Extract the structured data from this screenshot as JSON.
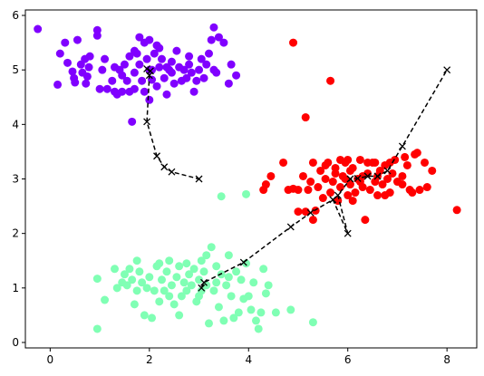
{
  "chart_data": {
    "type": "scatter",
    "title": "",
    "xlabel": "",
    "ylabel": "",
    "xlim": [
      -0.5,
      8.6
    ],
    "ylim": [
      -0.1,
      6.1
    ],
    "x_ticks": [
      "0",
      "2",
      "4",
      "6",
      "8"
    ],
    "x_tick_values": [
      0,
      2,
      4,
      6,
      8
    ],
    "y_ticks": [
      "0",
      "1",
      "2",
      "3",
      "4",
      "5",
      "6"
    ],
    "y_tick_values": [
      0,
      1,
      2,
      3,
      4,
      5,
      6
    ],
    "grid": false,
    "series": [
      {
        "color": "#8000ff",
        "marker": "circle",
        "points": [
          [
            -0.25,
            5.75
          ],
          [
            0.15,
            4.73
          ],
          [
            0.2,
            5.3
          ],
          [
            0.3,
            5.5
          ],
          [
            0.35,
            5.13
          ],
          [
            0.45,
            4.97
          ],
          [
            0.48,
            4.85
          ],
          [
            0.5,
            4.77
          ],
          [
            0.55,
            5.55
          ],
          [
            0.62,
            5.1
          ],
          [
            0.65,
            4.95
          ],
          [
            0.7,
            5.2
          ],
          [
            0.72,
            4.75
          ],
          [
            0.75,
            4.88
          ],
          [
            0.78,
            5.05
          ],
          [
            0.8,
            5.25
          ],
          [
            0.95,
            5.63
          ],
          [
            0.95,
            5.73
          ],
          [
            1.0,
            4.65
          ],
          [
            1.05,
            5.0
          ],
          [
            1.1,
            5.2
          ],
          [
            1.15,
            4.65
          ],
          [
            1.25,
            4.8
          ],
          [
            1.3,
            5.05
          ],
          [
            1.3,
            4.6
          ],
          [
            1.35,
            4.55
          ],
          [
            1.4,
            5.0
          ],
          [
            1.45,
            4.9
          ],
          [
            1.5,
            5.1
          ],
          [
            1.55,
            4.8
          ],
          [
            1.6,
            5.25
          ],
          [
            1.6,
            4.6
          ],
          [
            1.7,
            4.95
          ],
          [
            1.7,
            4.65
          ],
          [
            1.75,
            5.3
          ],
          [
            1.8,
            5.1
          ],
          [
            1.85,
            4.8
          ],
          [
            1.9,
            5.5
          ],
          [
            1.9,
            4.6
          ],
          [
            1.95,
            5.2
          ],
          [
            2.0,
            4.45
          ],
          [
            2.0,
            5.0
          ],
          [
            2.05,
            5.0
          ],
          [
            2.1,
            5.3
          ],
          [
            2.15,
            5.45
          ],
          [
            2.2,
            5.05
          ],
          [
            2.25,
            5.2
          ],
          [
            2.3,
            4.85
          ],
          [
            2.35,
            4.55
          ],
          [
            2.4,
            5.0
          ],
          [
            2.45,
            5.15
          ],
          [
            2.5,
            4.75
          ],
          [
            2.55,
            5.35
          ],
          [
            2.6,
            5.05
          ],
          [
            2.65,
            4.8
          ],
          [
            2.7,
            5.0
          ],
          [
            2.75,
            4.85
          ],
          [
            2.8,
            5.25
          ],
          [
            2.85,
            4.95
          ],
          [
            2.9,
            4.6
          ],
          [
            2.95,
            4.8
          ],
          [
            3.0,
            5.0
          ],
          [
            3.05,
            5.2
          ],
          [
            3.1,
            4.85
          ],
          [
            3.15,
            5.1
          ],
          [
            3.2,
            5.3
          ],
          [
            3.25,
            5.55
          ],
          [
            3.3,
            5.0
          ],
          [
            3.35,
            4.95
          ],
          [
            3.4,
            5.6
          ],
          [
            3.5,
            5.5
          ],
          [
            3.6,
            4.75
          ],
          [
            3.65,
            5.1
          ],
          [
            3.75,
            4.9
          ],
          [
            1.7,
            5.35
          ],
          [
            2.0,
            5.55
          ],
          [
            2.2,
            5.4
          ],
          [
            1.45,
            4.6
          ],
          [
            1.8,
            5.6
          ],
          [
            1.65,
            4.05
          ],
          [
            2.05,
            4.82
          ],
          [
            2.35,
            5.05
          ],
          [
            2.45,
            4.95
          ],
          [
            2.15,
            4.7
          ],
          [
            2.8,
            5.1
          ],
          [
            3.3,
            5.78
          ]
        ]
      },
      {
        "color": "#ff0000",
        "marker": "circle",
        "points": [
          [
            4.9,
            5.5
          ],
          [
            5.65,
            4.8
          ],
          [
            5.15,
            4.13
          ],
          [
            4.45,
            3.05
          ],
          [
            4.7,
            3.3
          ],
          [
            4.3,
            2.8
          ],
          [
            4.35,
            2.9
          ],
          [
            4.8,
            2.8
          ],
          [
            4.9,
            2.82
          ],
          [
            5.0,
            2.8
          ],
          [
            5.1,
            3.05
          ],
          [
            5.15,
            2.4
          ],
          [
            5.2,
            2.8
          ],
          [
            5.25,
            2.95
          ],
          [
            5.3,
            2.25
          ],
          [
            5.35,
            2.42
          ],
          [
            5.4,
            2.85
          ],
          [
            5.45,
            3.15
          ],
          [
            5.5,
            2.65
          ],
          [
            5.55,
            3.0
          ],
          [
            5.6,
            3.3
          ],
          [
            5.65,
            2.75
          ],
          [
            5.7,
            2.95
          ],
          [
            5.75,
            3.2
          ],
          [
            5.8,
            2.6
          ],
          [
            5.85,
            2.85
          ],
          [
            5.9,
            3.05
          ],
          [
            5.95,
            3.3
          ],
          [
            6.0,
            2.7
          ],
          [
            6.05,
            2.9
          ],
          [
            6.1,
            3.2
          ],
          [
            6.15,
            2.75
          ],
          [
            6.2,
            3.0
          ],
          [
            6.25,
            3.35
          ],
          [
            6.3,
            2.85
          ],
          [
            6.35,
            2.25
          ],
          [
            6.4,
            3.1
          ],
          [
            6.45,
            2.8
          ],
          [
            6.5,
            3.3
          ],
          [
            6.55,
            2.95
          ],
          [
            6.6,
            2.7
          ],
          [
            6.65,
            3.15
          ],
          [
            6.7,
            2.9
          ],
          [
            6.75,
            3.25
          ],
          [
            6.8,
            3.0
          ],
          [
            6.85,
            2.75
          ],
          [
            6.9,
            3.1
          ],
          [
            6.95,
            3.35
          ],
          [
            7.0,
            2.95
          ],
          [
            7.1,
            3.05
          ],
          [
            7.15,
            3.4
          ],
          [
            7.2,
            3.25
          ],
          [
            7.25,
            2.8
          ],
          [
            7.3,
            2.75
          ],
          [
            7.35,
            3.45
          ],
          [
            7.4,
            3.48
          ],
          [
            7.45,
            2.8
          ],
          [
            7.55,
            3.3
          ],
          [
            7.6,
            2.85
          ],
          [
            7.7,
            3.15
          ],
          [
            8.2,
            2.43
          ],
          [
            5.0,
            2.4
          ],
          [
            5.55,
            3.25
          ],
          [
            6.0,
            3.35
          ],
          [
            5.95,
            3.0
          ],
          [
            6.1,
            2.6
          ],
          [
            6.25,
            2.95
          ],
          [
            6.4,
            3.3
          ],
          [
            6.55,
            3.3
          ],
          [
            6.75,
            2.7
          ],
          [
            5.75,
            3.1
          ],
          [
            5.85,
            3.35
          ],
          [
            6.05,
            3.15
          ],
          [
            6.3,
            3.05
          ],
          [
            6.6,
            3.05
          ],
          [
            6.85,
            3.3
          ],
          [
            7.1,
            2.9
          ],
          [
            5.3,
            3.3
          ]
        ]
      },
      {
        "color": "#80ffb4",
        "marker": "circle",
        "points": [
          [
            0.95,
            0.25
          ],
          [
            0.95,
            1.17
          ],
          [
            1.1,
            0.78
          ],
          [
            1.35,
            1.0
          ],
          [
            1.45,
            1.1
          ],
          [
            1.5,
            1.25
          ],
          [
            1.55,
            1.05
          ],
          [
            1.6,
            1.35
          ],
          [
            1.65,
            1.15
          ],
          [
            1.7,
            0.7
          ],
          [
            1.75,
            0.95
          ],
          [
            1.8,
            1.3
          ],
          [
            1.85,
            1.1
          ],
          [
            1.9,
            0.5
          ],
          [
            1.95,
            1.0
          ],
          [
            2.0,
            1.2
          ],
          [
            2.05,
            0.45
          ],
          [
            2.1,
            0.95
          ],
          [
            2.15,
            1.4
          ],
          [
            2.2,
            0.75
          ],
          [
            2.25,
            1.15
          ],
          [
            2.3,
            0.95
          ],
          [
            2.35,
            1.3
          ],
          [
            2.4,
            0.85
          ],
          [
            2.45,
            1.05
          ],
          [
            2.5,
            0.7
          ],
          [
            2.55,
            1.2
          ],
          [
            2.6,
            0.5
          ],
          [
            2.65,
            0.85
          ],
          [
            2.7,
            1.1
          ],
          [
            2.75,
            0.95
          ],
          [
            2.8,
            1.25
          ],
          [
            2.85,
            1.05
          ],
          [
            2.9,
            1.35
          ],
          [
            2.95,
            0.75
          ],
          [
            3.0,
            1.15
          ],
          [
            3.05,
            0.95
          ],
          [
            3.1,
            1.3
          ],
          [
            3.15,
            1.6
          ],
          [
            3.2,
            0.35
          ],
          [
            3.25,
            1.75
          ],
          [
            3.3,
            0.95
          ],
          [
            3.35,
            1.4
          ],
          [
            3.4,
            0.65
          ],
          [
            3.45,
            1.25
          ],
          [
            3.5,
            0.4
          ],
          [
            3.55,
            1.05
          ],
          [
            3.6,
            1.2
          ],
          [
            3.65,
            0.85
          ],
          [
            3.7,
            0.45
          ],
          [
            3.75,
            1.3
          ],
          [
            3.8,
            0.55
          ],
          [
            3.85,
            1.15
          ],
          [
            3.9,
            0.8
          ],
          [
            3.95,
            1.45
          ],
          [
            4.0,
            0.85
          ],
          [
            4.05,
            0.6
          ],
          [
            4.1,
            1.1
          ],
          [
            4.15,
            0.4
          ],
          [
            4.2,
            0.25
          ],
          [
            4.25,
            0.55
          ],
          [
            4.3,
            1.35
          ],
          [
            4.35,
            0.9
          ],
          [
            4.4,
            1.05
          ],
          [
            4.55,
            0.55
          ],
          [
            4.85,
            0.6
          ],
          [
            5.3,
            0.37
          ],
          [
            3.45,
            2.68
          ],
          [
            3.95,
            2.72
          ],
          [
            2.4,
            1.5
          ],
          [
            2.2,
            1.45
          ],
          [
            3.05,
            1.5
          ],
          [
            3.15,
            1.05
          ],
          [
            3.35,
            1.1
          ],
          [
            2.75,
            1.45
          ],
          [
            1.75,
            1.5
          ],
          [
            3.6,
            1.6
          ],
          [
            2.6,
            1.4
          ],
          [
            1.3,
            1.35
          ],
          [
            3.0,
            0.85
          ]
        ]
      }
    ],
    "paths": [
      {
        "color": "#000000",
        "style": "dashed",
        "marker": "x",
        "points": [
          [
            1.95,
            5.02
          ],
          [
            2.02,
            4.98
          ],
          [
            2.0,
            4.9
          ],
          [
            1.95,
            4.05
          ],
          [
            2.15,
            3.42
          ],
          [
            2.3,
            3.22
          ],
          [
            2.45,
            3.13
          ],
          [
            3.0,
            3.0
          ]
        ]
      },
      {
        "color": "#000000",
        "style": "dashed",
        "marker": "x",
        "points": [
          [
            3.05,
            1.0
          ],
          [
            3.1,
            1.1
          ],
          [
            3.9,
            1.47
          ],
          [
            4.85,
            2.12
          ],
          [
            5.25,
            2.38
          ],
          [
            5.7,
            2.62
          ],
          [
            6.0,
            2.0
          ],
          [
            5.8,
            2.7
          ],
          [
            6.05,
            3.0
          ],
          [
            6.2,
            3.01
          ],
          [
            6.4,
            3.05
          ],
          [
            6.6,
            3.05
          ],
          [
            6.8,
            3.15
          ],
          [
            7.1,
            3.6
          ],
          [
            8.0,
            5.0
          ]
        ]
      }
    ]
  }
}
